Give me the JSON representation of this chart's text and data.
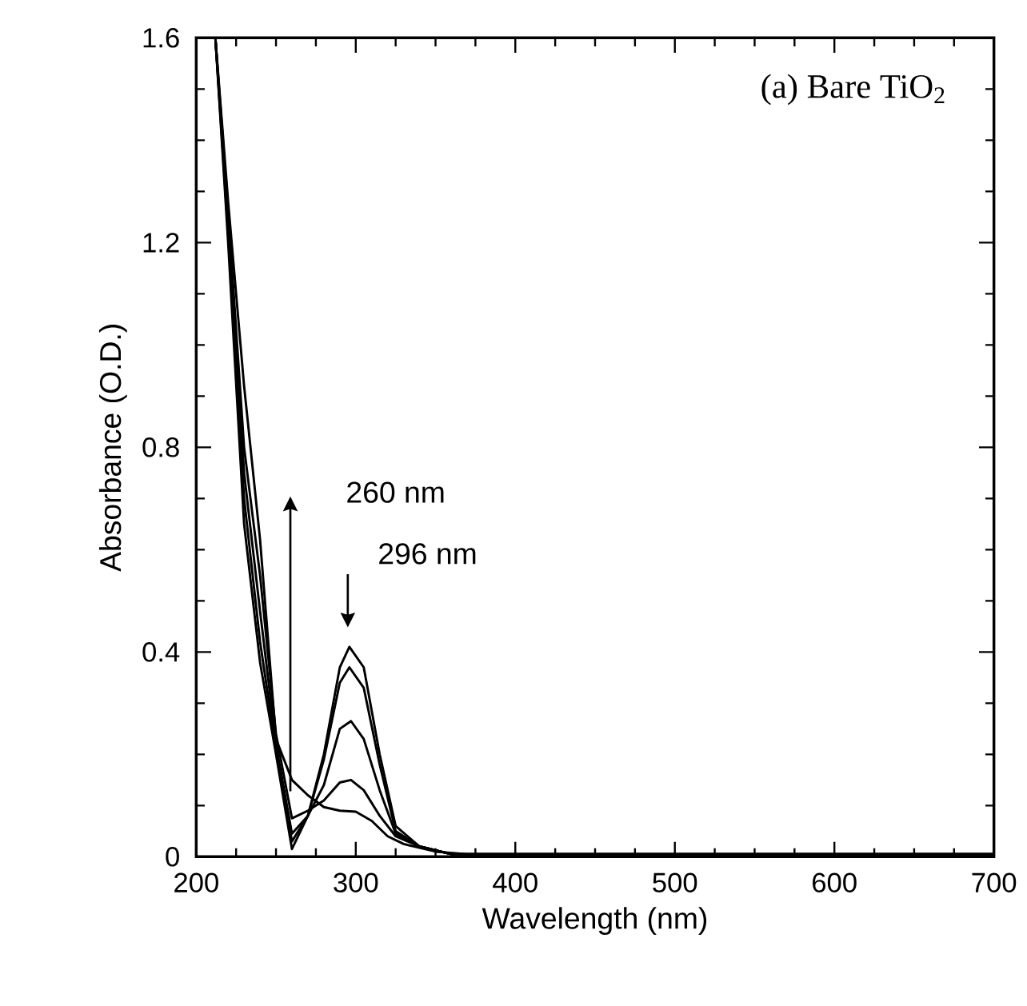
{
  "chart_data": {
    "type": "line",
    "title": "(a) Bare TiO$_{2}$",
    "xlabel": "Wavelength  (nm)",
    "ylabel": "Absorbance  (O.D.)",
    "xlim": [
      200,
      700
    ],
    "ylim": [
      0,
      1.6
    ],
    "xticks": [
      200,
      300,
      400,
      500,
      600,
      700
    ],
    "yticks": [
      {
        "value": 0,
        "label": "0"
      },
      {
        "value": 0.4,
        "label": "0.4"
      },
      {
        "value": 0.8,
        "label": "0.8"
      },
      {
        "value": 1.2,
        "label": "1.2"
      },
      {
        "value": 1.6,
        "label": "1.6"
      }
    ],
    "series": [
      {
        "color": "#000000",
        "x": [
          212,
          220,
          230,
          240,
          250,
          260,
          270,
          280,
          290,
          296,
          305,
          315,
          325,
          340,
          360,
          400,
          700
        ],
        "values": [
          1.6,
          1.2,
          0.65,
          0.38,
          0.2,
          0.015,
          0.08,
          0.2,
          0.37,
          0.41,
          0.37,
          0.2,
          0.06,
          0.02,
          0.005,
          0.005,
          0.005
        ]
      },
      {
        "color": "#000000",
        "x": [
          212,
          220,
          230,
          240,
          250,
          260,
          270,
          280,
          290,
          296,
          305,
          315,
          325,
          340,
          360,
          400,
          700
        ],
        "values": [
          1.6,
          1.22,
          0.7,
          0.42,
          0.21,
          0.03,
          0.08,
          0.19,
          0.34,
          0.37,
          0.33,
          0.18,
          0.05,
          0.02,
          0.005,
          0.005,
          0.005
        ]
      },
      {
        "color": "#000000",
        "x": [
          212,
          220,
          230,
          240,
          250,
          260,
          270,
          280,
          290,
          297,
          305,
          315,
          325,
          340,
          360,
          400,
          700
        ],
        "values": [
          1.6,
          1.24,
          0.75,
          0.48,
          0.22,
          0.045,
          0.08,
          0.14,
          0.25,
          0.265,
          0.23,
          0.13,
          0.045,
          0.02,
          0.005,
          0.005,
          0.005
        ]
      },
      {
        "color": "#000000",
        "x": [
          212,
          220,
          230,
          240,
          250,
          260,
          270,
          280,
          290,
          297,
          305,
          315,
          325,
          340,
          360,
          400,
          700
        ],
        "values": [
          1.6,
          1.26,
          0.8,
          0.55,
          0.24,
          0.075,
          0.09,
          0.11,
          0.145,
          0.15,
          0.13,
          0.08,
          0.04,
          0.02,
          0.005,
          0.005,
          0.005
        ]
      },
      {
        "color": "#000000",
        "x": [
          212,
          220,
          230,
          240,
          250,
          260,
          270,
          280,
          290,
          300,
          310,
          320,
          330,
          350,
          370,
          400,
          700
        ],
        "values": [
          1.6,
          1.28,
          0.92,
          0.62,
          0.23,
          0.15,
          0.12,
          0.097,
          0.09,
          0.088,
          0.07,
          0.04,
          0.025,
          0.01,
          0.005,
          0.005,
          0.005
        ]
      }
    ],
    "annotations": [
      "260 nm",
      "296 nm"
    ]
  }
}
